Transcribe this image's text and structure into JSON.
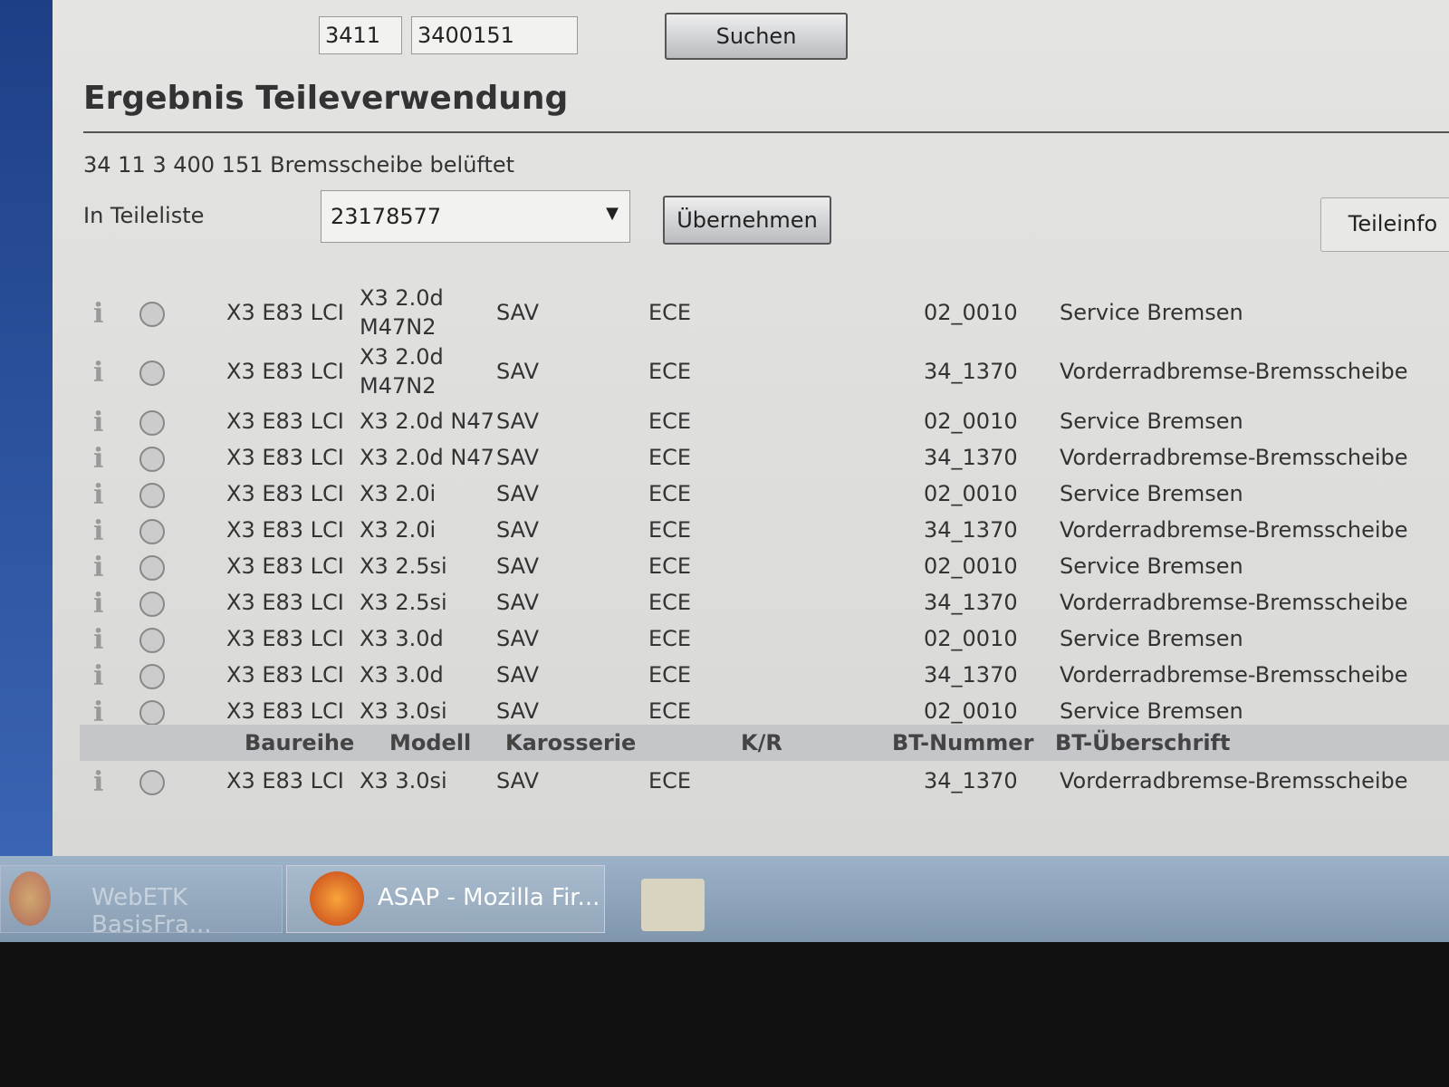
{
  "search": {
    "field_1": "3411",
    "field_2": "3400151",
    "button": "Suchen"
  },
  "header": {
    "title": "Ergebnis Teileverwendung"
  },
  "part": {
    "description": "34 11 3 400 151 Bremsscheibe belüftet",
    "list_label": "In Teileliste",
    "list_value": "23178577",
    "apply_button": "Übernehmen",
    "info_button": "Teileinfo"
  },
  "table": {
    "rows": [
      [
        "X3 E83 LCI",
        "X3 2.0d M47N2",
        "SAV",
        "ECE",
        "02_0010",
        "Service Bremsen"
      ],
      [
        "X3 E83 LCI",
        "X3 2.0d M47N2",
        "SAV",
        "ECE",
        "34_1370",
        "Vorderradbremse-Bremsscheibe"
      ],
      [
        "X3 E83 LCI",
        "X3 2.0d N47",
        "SAV",
        "ECE",
        "02_0010",
        "Service Bremsen"
      ],
      [
        "X3 E83 LCI",
        "X3 2.0d N47",
        "SAV",
        "ECE",
        "34_1370",
        "Vorderradbremse-Bremsscheibe"
      ],
      [
        "X3 E83 LCI",
        "X3 2.0i",
        "SAV",
        "ECE",
        "02_0010",
        "Service Bremsen"
      ],
      [
        "X3 E83 LCI",
        "X3 2.0i",
        "SAV",
        "ECE",
        "34_1370",
        "Vorderradbremse-Bremsscheibe"
      ],
      [
        "X3 E83 LCI",
        "X3 2.5si",
        "SAV",
        "ECE",
        "02_0010",
        "Service Bremsen"
      ],
      [
        "X3 E83 LCI",
        "X3 2.5si",
        "SAV",
        "ECE",
        "34_1370",
        "Vorderradbremse-Bremsscheibe"
      ],
      [
        "X3 E83 LCI",
        "X3 3.0d",
        "SAV",
        "ECE",
        "02_0010",
        "Service Bremsen"
      ],
      [
        "X3 E83 LCI",
        "X3 3.0d",
        "SAV",
        "ECE",
        "34_1370",
        "Vorderradbremse-Bremsscheibe"
      ],
      [
        "X3 E83 LCI",
        "X3 3.0si",
        "SAV",
        "ECE",
        "02_0010",
        "Service Bremsen"
      ]
    ],
    "header": [
      "Baureihe",
      "Modell",
      "Karosserie",
      "K/R",
      "BT-Nummer",
      "BT-Überschrift"
    ],
    "footer_row": [
      "X3 E83 LCI",
      "X3 3.0si",
      "SAV",
      "ECE",
      "34_1370",
      "Vorderradbremse-Bremsscheibe"
    ]
  },
  "taskbar": {
    "items": [
      "WebETK BasisFra...",
      "ASAP - Mozilla Fir..."
    ]
  }
}
